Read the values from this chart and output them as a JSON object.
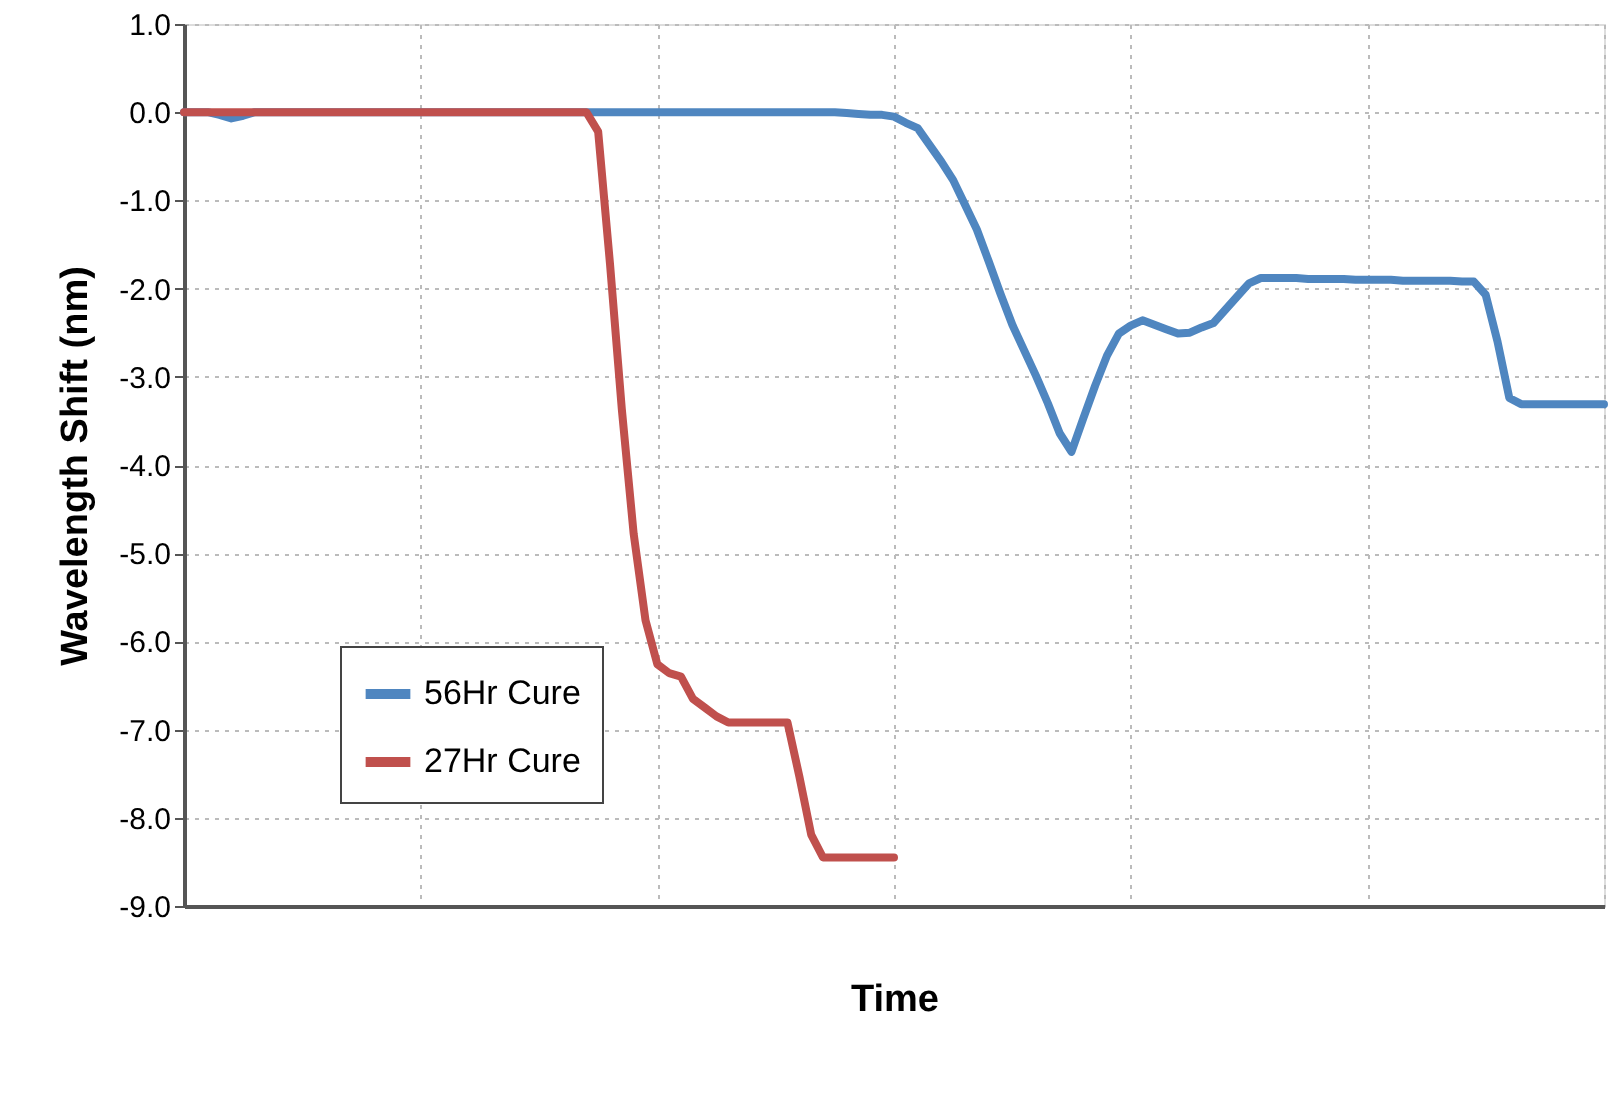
{
  "chart_data": {
    "type": "line",
    "xlabel": "Time",
    "ylabel": "Wavelength Shift (nm)",
    "categories": [
      null,
      null,
      null,
      null,
      null,
      null,
      null,
      null,
      null,
      null,
      null,
      null,
      null,
      null,
      null,
      null,
      null,
      null,
      null,
      null,
      null,
      null,
      null,
      null,
      null,
      null,
      null,
      null,
      null,
      null,
      null,
      null,
      null,
      null,
      null,
      null,
      null,
      null,
      null,
      null,
      null,
      null,
      null,
      null,
      null,
      null,
      null,
      null,
      null,
      null,
      null,
      null,
      null,
      null,
      null,
      null,
      null,
      null,
      null,
      null,
      null,
      null,
      null,
      null,
      null,
      null,
      null,
      null,
      null,
      null,
      null,
      null,
      null,
      null,
      null,
      null,
      null,
      null,
      null,
      null,
      null,
      null,
      null,
      null,
      null,
      null,
      null,
      null,
      null,
      null,
      null,
      null,
      null,
      null,
      null,
      null,
      null,
      null,
      null,
      null,
      null,
      null,
      null,
      null,
      null,
      null,
      null,
      null,
      null,
      null,
      null,
      null,
      null,
      null,
      null,
      null,
      null,
      null,
      null,
      null,
      null
    ],
    "ylim": [
      -9,
      1
    ],
    "yticks": [
      {
        "value": -9,
        "label": "-9.0"
      },
      {
        "value": -8,
        "label": "-8.0"
      },
      {
        "value": -7,
        "label": "-7.0"
      },
      {
        "value": -6,
        "label": "-6.0"
      },
      {
        "value": -5,
        "label": "-5.0"
      },
      {
        "value": -4,
        "label": "-4.0"
      },
      {
        "value": -3,
        "label": "-3.0"
      },
      {
        "value": -2,
        "label": "-2.0"
      },
      {
        "value": -1,
        "label": "-1.0"
      },
      {
        "value": 0,
        "label": "0.0"
      },
      {
        "value": 1,
        "label": "1.0"
      }
    ],
    "grid": true,
    "legend": "bottom left",
    "marker": "none",
    "line_style": "solid",
    "series": [
      {
        "name": "56Hr Cure",
        "color": "#4f86c0",
        "values": [
          0,
          0,
          0,
          -0.03,
          -0.07,
          -0.04,
          0,
          0,
          0,
          0,
          0,
          0,
          0,
          0,
          0,
          0,
          0,
          0,
          0,
          0,
          0,
          0,
          0,
          0,
          0,
          0,
          0,
          0,
          0,
          0,
          0,
          0,
          0,
          0,
          0,
          0,
          0,
          0,
          0,
          0,
          0,
          0,
          0,
          0,
          0,
          0,
          0,
          0,
          0,
          0,
          0,
          0,
          0,
          0,
          0,
          0,
          -0.01,
          -0.02,
          -0.03,
          -0.03,
          -0.05,
          -0.12,
          -0.18,
          -0.37,
          -0.56,
          -0.77,
          -1.05,
          -1.33,
          -1.69,
          -2.06,
          -2.41,
          -2.7,
          -2.99,
          -3.3,
          -3.64,
          -3.85,
          -3.47,
          -3.1,
          -2.76,
          -2.51,
          -2.42,
          -2.36,
          -2.41,
          -2.46,
          -2.51,
          -2.5,
          -2.44,
          -2.39,
          -2.24,
          -2.09,
          -1.94,
          -1.88,
          -1.88,
          -1.88,
          -1.88,
          -1.89,
          -1.89,
          -1.89,
          -1.89,
          -1.9,
          -1.9,
          -1.9,
          -1.9,
          -1.91,
          -1.91,
          -1.91,
          -1.91,
          -1.91,
          -1.92,
          -1.92,
          -2.07,
          -2.6,
          -3.24,
          -3.31,
          -3.31,
          -3.31,
          -3.31,
          -3.31,
          -3.31,
          -3.31,
          -3.31
        ]
      },
      {
        "name": "27Hr Cure",
        "color": "#c0504d",
        "values": [
          0,
          0,
          0,
          0,
          0,
          0,
          0,
          0,
          0,
          0,
          0,
          0,
          0,
          0,
          0,
          0,
          0,
          0,
          0,
          0,
          0,
          0,
          0,
          0,
          0,
          0,
          0,
          0,
          0,
          0,
          0,
          0,
          0,
          0,
          0,
          -0.22,
          -1.72,
          -3.37,
          -4.78,
          -5.76,
          -6.26,
          -6.36,
          -6.4,
          -6.65,
          -6.75,
          -6.85,
          -6.92,
          -6.92,
          -6.92,
          -6.92,
          -6.92,
          -6.92,
          -7.53,
          -8.19,
          -8.45,
          -8.45,
          -8.45,
          -8.45,
          -8.45,
          -8.45,
          -8.45,
          null,
          null,
          null,
          null,
          null,
          null,
          null,
          null,
          null,
          null,
          null,
          null,
          null,
          null,
          null,
          null,
          null,
          null,
          null,
          null,
          null,
          null,
          null,
          null,
          null,
          null,
          null,
          null,
          null,
          null,
          null,
          null,
          null,
          null,
          null,
          null,
          null,
          null,
          null,
          null,
          null,
          null,
          null,
          null,
          null,
          null,
          null,
          null,
          null,
          null,
          null,
          null,
          null,
          null,
          null,
          null,
          null,
          null,
          null,
          null
        ]
      }
    ]
  }
}
